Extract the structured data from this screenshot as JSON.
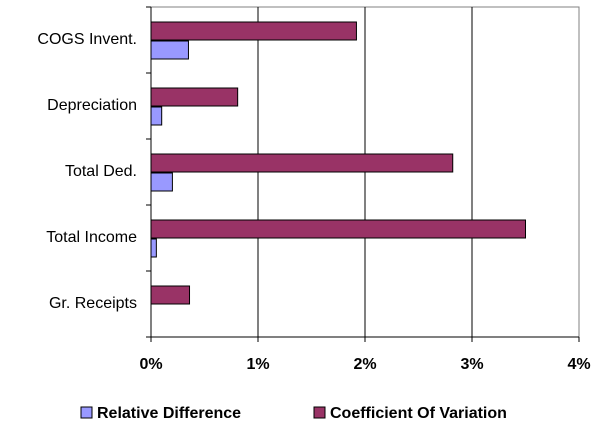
{
  "chart_data": {
    "type": "hbar",
    "categories": [
      "COGS Invent.",
      "Depreciation",
      "Total Ded.",
      "Total Income",
      "Gr. Receipts"
    ],
    "series": [
      {
        "name": "Relative Difference",
        "color": "#9999ff",
        "values": [
          0.35,
          0.1,
          0.2,
          0.05,
          0
        ]
      },
      {
        "name": "Coefficient Of Variation",
        "color": "#993366",
        "values": [
          1.92,
          0.81,
          2.82,
          3.5,
          0.36
        ]
      }
    ],
    "xlim": [
      0,
      4
    ],
    "xticks": [
      {
        "value": 0,
        "label": "0%"
      },
      {
        "value": 1,
        "label": "1%"
      },
      {
        "value": 2,
        "label": "2%"
      },
      {
        "value": 3,
        "label": "3%"
      },
      {
        "value": 4,
        "label": "4%"
      }
    ],
    "grid": true
  }
}
